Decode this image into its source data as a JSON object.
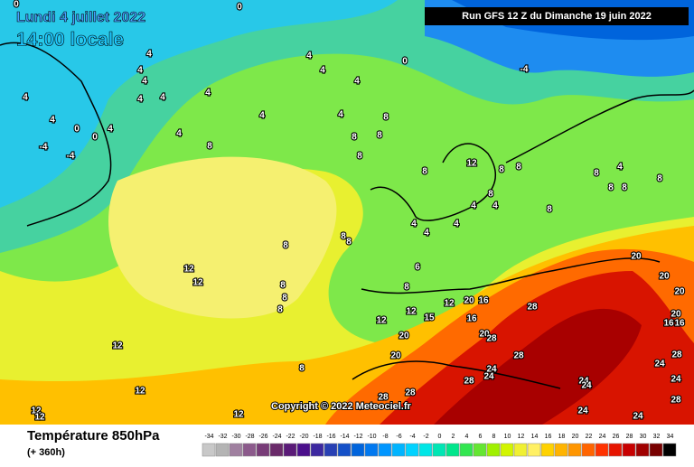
{
  "header": {
    "date": "Lundi 4 juillet 2022",
    "time": "14:00 locale",
    "run": "Run GFS 12 Z du Dimanche 19 juin 2022"
  },
  "footer": {
    "title": "Température 850hPa",
    "lead": "(+ 360h)",
    "copyright": "Copyright © 2022 Meteociel.fr"
  },
  "legend": {
    "ticks": [
      -34,
      -32,
      -30,
      -28,
      -26,
      -24,
      -22,
      -20,
      -18,
      -16,
      -14,
      -12,
      -10,
      -8,
      -6,
      -4,
      -2,
      0,
      2,
      4,
      6,
      8,
      10,
      12,
      14,
      16,
      18,
      20,
      22,
      24,
      26,
      28,
      30,
      32,
      34
    ],
    "colors": [
      "#c8c8c8",
      "#b4b4b4",
      "#a080a0",
      "#8c5a8c",
      "#783c78",
      "#6a2a6a",
      "#5a1a78",
      "#4b0f8c",
      "#3c28a0",
      "#2840b4",
      "#1450c8",
      "#0064dc",
      "#0078f0",
      "#0096ff",
      "#00b4ff",
      "#00d2ff",
      "#00e6e6",
      "#00e6b4",
      "#00e68c",
      "#32e650",
      "#64e632",
      "#a0f000",
      "#d2f500",
      "#f0f032",
      "#fff064",
      "#ffd200",
      "#ffb400",
      "#ff9600",
      "#ff6400",
      "#ff3200",
      "#e61400",
      "#c80000",
      "#a00000",
      "#780000",
      "#000000"
    ]
  },
  "contour_labels": [
    4,
    4,
    4,
    4,
    4,
    4,
    4,
    4,
    0,
    0,
    4,
    -4,
    -4,
    4,
    4,
    4,
    4,
    4,
    0,
    -4,
    8,
    8,
    8,
    8,
    8,
    4,
    8,
    12,
    8,
    8,
    8,
    4,
    4,
    4,
    4,
    4,
    8,
    8,
    8,
    8,
    8,
    8,
    12,
    12,
    12,
    12,
    12,
    12,
    12,
    12,
    12,
    15,
    6,
    8,
    12,
    20,
    16,
    16,
    20,
    20,
    20,
    28,
    28,
    28,
    28,
    28,
    28,
    24,
    24,
    24,
    24,
    24,
    24,
    24,
    28,
    24,
    28,
    20,
    20,
    20,
    20,
    16,
    16,
    4,
    8,
    8,
    8,
    8,
    8,
    8,
    0,
    0
  ]
}
